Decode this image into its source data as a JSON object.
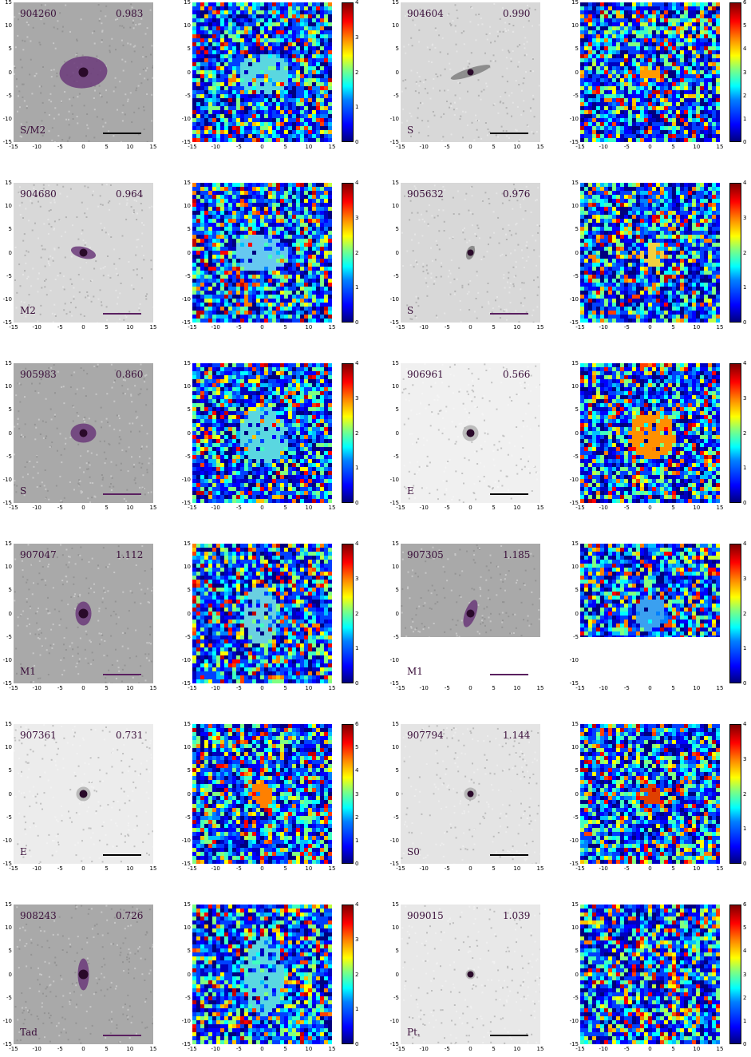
{
  "axis_ticks": [
    "-15",
    "-10",
    "-5",
    "0",
    "5",
    "10",
    "15"
  ],
  "colors": {
    "grey_bg_dark": "#a9a9a9",
    "grey_bg_light": "#d8d8d8",
    "core": "#2a0a2a",
    "isophote": "#6b3a7a",
    "scalebar_black": "#000000",
    "scalebar_purple": "#5a2060"
  },
  "panels": [
    {
      "id": "904260",
      "z": "0.983",
      "morph": "S/M2",
      "cbar_max": 4,
      "cbar_ticks": [
        "0",
        "1",
        "2",
        "3",
        "4"
      ]
    },
    {
      "id": "904604",
      "z": "0.990",
      "morph": "S",
      "cbar_max": 6,
      "cbar_ticks": [
        "0",
        "1",
        "2",
        "3",
        "4",
        "5",
        "6"
      ]
    },
    {
      "id": "904680",
      "z": "0.964",
      "morph": "M2",
      "cbar_max": 4,
      "cbar_ticks": [
        "0",
        "1",
        "2",
        "3",
        "4"
      ]
    },
    {
      "id": "905632",
      "z": "0.976",
      "morph": "S",
      "cbar_max": 4,
      "cbar_ticks": [
        "0",
        "1",
        "2",
        "3",
        "4"
      ]
    },
    {
      "id": "905983",
      "z": "0.860",
      "morph": "S",
      "cbar_max": 4,
      "cbar_ticks": [
        "0",
        "1",
        "2",
        "3",
        "4"
      ]
    },
    {
      "id": "906961",
      "z": "0.566",
      "morph": "E",
      "cbar_max": 4,
      "cbar_ticks": [
        "0",
        "1",
        "2",
        "3",
        "4"
      ]
    },
    {
      "id": "907047",
      "z": "1.112",
      "morph": "M1",
      "cbar_max": 4,
      "cbar_ticks": [
        "0",
        "1",
        "2",
        "3",
        "4"
      ]
    },
    {
      "id": "907305",
      "z": "1.185",
      "morph": "M1",
      "cbar_max": 4,
      "cbar_ticks": [
        "0",
        "1",
        "2",
        "3",
        "4"
      ]
    },
    {
      "id": "907361",
      "z": "0.731",
      "morph": "E",
      "cbar_max": 6,
      "cbar_ticks": [
        "0",
        "1",
        "2",
        "3",
        "4",
        "5",
        "6"
      ]
    },
    {
      "id": "907794",
      "z": "1.144",
      "morph": "S0",
      "cbar_max": 4,
      "cbar_ticks": [
        "0",
        "1",
        "2",
        "3",
        "4"
      ]
    },
    {
      "id": "908243",
      "z": "0.726",
      "morph": "Tad",
      "cbar_max": 4,
      "cbar_ticks": [
        "0",
        "1",
        "2",
        "3",
        "4"
      ]
    },
    {
      "id": "909015",
      "z": "1.039",
      "morph": "Pt.",
      "cbar_max": 6,
      "cbar_ticks": [
        "0",
        "1",
        "2",
        "3",
        "4",
        "5",
        "6"
      ]
    }
  ]
}
